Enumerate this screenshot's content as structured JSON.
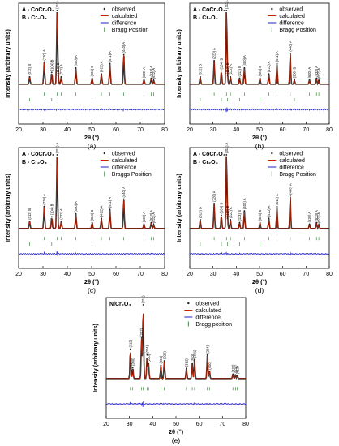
{
  "figure": {
    "colors": {
      "observed": "#222222",
      "calculated": "#cc2200",
      "difference": "#2222cc",
      "bragg": "#3a8a3a",
      "axis": "#000000"
    }
  },
  "chart_data": [
    {
      "type": "line",
      "panel_label": "(a)",
      "phase_labels": [
        "A - CoCr₂O₄",
        "B - Cr₂O₃"
      ],
      "legend": [
        "observed",
        "calculated",
        "difference",
        "Bragg Position"
      ],
      "legend_position": "top-right",
      "xlabel": "2θ (°)",
      "ylabel": "Intensity (arbitrary units)",
      "xlim": [
        20,
        80
      ],
      "xticks": [
        20,
        30,
        40,
        50,
        60,
        70,
        80
      ],
      "grid": false,
      "peaks": [
        {
          "x": 24.5,
          "y": 0.1,
          "label": "(012) B"
        },
        {
          "x": 30.5,
          "y": 0.3,
          "label": "(220) A"
        },
        {
          "x": 33.6,
          "y": 0.16,
          "label": "(104) B"
        },
        {
          "x": 35.8,
          "y": 1.0,
          "label": "(311) A"
        },
        {
          "x": 36.2,
          "y": 0.12,
          "label": "(110) B"
        },
        {
          "x": 37.5,
          "y": 0.1,
          "label": "(222) A"
        },
        {
          "x": 43.5,
          "y": 0.22,
          "label": "(400) A"
        },
        {
          "x": 50.2,
          "y": 0.08,
          "label": "(024) B"
        },
        {
          "x": 54.0,
          "y": 0.14,
          "label": "(422) A"
        },
        {
          "x": 57.5,
          "y": 0.28,
          "label": "(511) A"
        },
        {
          "x": 63.2,
          "y": 0.4,
          "label": "(440) A"
        },
        {
          "x": 71.5,
          "y": 0.06,
          "label": "(620) A"
        },
        {
          "x": 74.5,
          "y": 0.08,
          "label": "(533) A"
        },
        {
          "x": 75.5,
          "y": 0.05,
          "label": "(622) A"
        }
      ]
    },
    {
      "type": "line",
      "panel_label": "(b)",
      "phase_labels": [
        "A - CoCr₂O₄",
        "B - Cr₂O₃"
      ],
      "legend": [
        "observed",
        "calculated",
        "difference",
        "Bragg Position"
      ],
      "legend_position": "top-right",
      "xlabel": "2θ (°)",
      "ylabel": "Intensity (arbitrary units)",
      "xlim": [
        20,
        80
      ],
      "xticks": [
        20,
        30,
        40,
        50,
        60,
        70,
        80
      ],
      "grid": false,
      "peaks": [
        {
          "x": 24.5,
          "y": 0.1,
          "label": "(012) B"
        },
        {
          "x": 30.5,
          "y": 0.32,
          "label": "(220) A"
        },
        {
          "x": 33.6,
          "y": 0.18,
          "label": "(104) B"
        },
        {
          "x": 35.8,
          "y": 1.0,
          "label": "(311) A"
        },
        {
          "x": 36.2,
          "y": 0.12,
          "label": "(110) B"
        },
        {
          "x": 37.5,
          "y": 0.1,
          "label": "(222) A"
        },
        {
          "x": 41.4,
          "y": 0.08,
          "label": "(113) B"
        },
        {
          "x": 43.5,
          "y": 0.22,
          "label": "(400) A"
        },
        {
          "x": 50.2,
          "y": 0.08,
          "label": "(024) B"
        },
        {
          "x": 54.0,
          "y": 0.14,
          "label": "(422) A"
        },
        {
          "x": 57.5,
          "y": 0.28,
          "label": "(511) A"
        },
        {
          "x": 63.2,
          "y": 0.42,
          "label": "(440) A"
        },
        {
          "x": 65.0,
          "y": 0.06,
          "label": "(300) B"
        },
        {
          "x": 71.5,
          "y": 0.06,
          "label": "(620) A"
        },
        {
          "x": 74.5,
          "y": 0.08,
          "label": "(533) A"
        },
        {
          "x": 75.5,
          "y": 0.05,
          "label": "(622) A"
        }
      ]
    },
    {
      "type": "line",
      "panel_label": "(c)",
      "phase_labels": [
        "A - CoCr₂O₄",
        "B - Cr₂O₃"
      ],
      "legend": [
        "observed",
        "calculated",
        "difference",
        "Braggs Position"
      ],
      "legend_position": "top-right",
      "xlabel": "2θ (°)",
      "ylabel": "Intensity (arbitrary units)",
      "xlim": [
        20,
        80
      ],
      "xticks": [
        20,
        30,
        40,
        50,
        60,
        70,
        80
      ],
      "grid": false,
      "peaks": [
        {
          "x": 24.5,
          "y": 0.1,
          "label": "(012) B"
        },
        {
          "x": 30.5,
          "y": 0.3,
          "label": "(220) A"
        },
        {
          "x": 33.6,
          "y": 0.16,
          "label": "(104) B"
        },
        {
          "x": 35.8,
          "y": 1.0,
          "label": "(311) A"
        },
        {
          "x": 37.5,
          "y": 0.1,
          "label": "(222) A"
        },
        {
          "x": 43.5,
          "y": 0.2,
          "label": "(400) A"
        },
        {
          "x": 50.2,
          "y": 0.08,
          "label": "(024) B"
        },
        {
          "x": 54.0,
          "y": 0.14,
          "label": "(422) A"
        },
        {
          "x": 57.5,
          "y": 0.26,
          "label": "(511) A"
        },
        {
          "x": 63.2,
          "y": 0.4,
          "label": "(440) A"
        },
        {
          "x": 71.5,
          "y": 0.06,
          "label": "(620) A"
        },
        {
          "x": 74.5,
          "y": 0.08,
          "label": "(533) A"
        },
        {
          "x": 75.5,
          "y": 0.05,
          "label": "(622) A"
        }
      ]
    },
    {
      "type": "line",
      "panel_label": "(d)",
      "phase_labels": [
        "A - CoCr₂O₄",
        "B - Cr₂O₃"
      ],
      "legend": [
        "observed",
        "calculated",
        "difference",
        "Bragg Position"
      ],
      "legend_position": "top-right",
      "xlabel": "2θ (°)",
      "ylabel": "Intensity (arbitrary units)",
      "xlim": [
        20,
        80
      ],
      "xticks": [
        20,
        30,
        40,
        50,
        60,
        70,
        80
      ],
      "grid": false,
      "peaks": [
        {
          "x": 24.5,
          "y": 0.12,
          "label": "(012) B"
        },
        {
          "x": 30.5,
          "y": 0.34,
          "label": "(220) A"
        },
        {
          "x": 33.6,
          "y": 0.18,
          "label": "(104) B"
        },
        {
          "x": 35.8,
          "y": 1.0,
          "label": "(311) A"
        },
        {
          "x": 36.2,
          "y": 0.14,
          "label": "(110) B"
        },
        {
          "x": 37.5,
          "y": 0.12,
          "label": "(222) A"
        },
        {
          "x": 41.4,
          "y": 0.08,
          "label": "(113) B"
        },
        {
          "x": 43.5,
          "y": 0.24,
          "label": "(400) A"
        },
        {
          "x": 50.2,
          "y": 0.08,
          "label": "(024) B"
        },
        {
          "x": 54.0,
          "y": 0.14,
          "label": "(422) A"
        },
        {
          "x": 57.5,
          "y": 0.3,
          "label": "(511) A"
        },
        {
          "x": 63.2,
          "y": 0.44,
          "label": "(440) A"
        },
        {
          "x": 71.5,
          "y": 0.06,
          "label": "(620) A"
        },
        {
          "x": 74.5,
          "y": 0.08,
          "label": "(533) A"
        },
        {
          "x": 75.5,
          "y": 0.05,
          "label": "(622) A"
        }
      ]
    },
    {
      "type": "line",
      "panel_label": "(e)",
      "phase_labels": [
        "NiCr₂O₄"
      ],
      "legend": [
        "observed",
        "calculated",
        "difference",
        "Bragg position"
      ],
      "legend_position": "top-right",
      "xlabel": "2θ (°)",
      "ylabel": "Intensity (arbitrary units)",
      "xlim": [
        20,
        80
      ],
      "xticks": [
        20,
        30,
        40,
        50,
        60,
        70,
        80
      ],
      "grid": false,
      "peaks": [
        {
          "x": 30.4,
          "y": 0.4,
          "label": "(112)"
        },
        {
          "x": 31.4,
          "y": 0.15,
          "label": "(200)"
        },
        {
          "x": 35.2,
          "y": 0.55,
          "label": "(202)"
        },
        {
          "x": 35.9,
          "y": 1.0,
          "label": "(211)"
        },
        {
          "x": 37.6,
          "y": 0.32,
          "label": "(004)"
        },
        {
          "x": 38.2,
          "y": 0.2,
          "label": "(220)"
        },
        {
          "x": 43.5,
          "y": 0.18,
          "label": "(004)"
        },
        {
          "x": 45.0,
          "y": 0.24,
          "label": "(220)"
        },
        {
          "x": 54.5,
          "y": 0.14,
          "label": "(312)"
        },
        {
          "x": 57.0,
          "y": 0.2,
          "label": "(303)"
        },
        {
          "x": 58.0,
          "y": 0.26,
          "label": "(321)"
        },
        {
          "x": 63.5,
          "y": 0.32,
          "label": "(224)"
        },
        {
          "x": 64.4,
          "y": 0.1,
          "label": "(400)"
        },
        {
          "x": 74.5,
          "y": 0.06,
          "label": "(332)"
        },
        {
          "x": 75.6,
          "y": 0.05,
          "label": "(404)"
        },
        {
          "x": 76.4,
          "y": 0.04,
          "label": "(413)"
        }
      ]
    }
  ]
}
